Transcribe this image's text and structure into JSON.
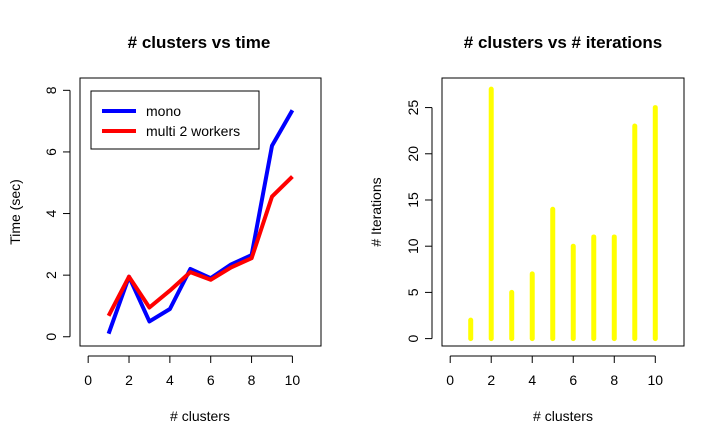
{
  "chart_data": [
    {
      "type": "line",
      "title": "# clusters vs time",
      "xlabel": "# clusters",
      "ylabel": "Time (sec)",
      "xlim": [
        -0.4,
        11.4
      ],
      "ylim": [
        -0.3,
        8.4
      ],
      "xticks": [
        "0",
        "2",
        "4",
        "6",
        "8",
        "10"
      ],
      "yticks": [
        "0",
        "2",
        "4",
        "6",
        "8"
      ],
      "x": [
        1,
        2,
        3,
        4,
        5,
        6,
        7,
        8,
        9,
        10
      ],
      "legend_position": "top-left",
      "series": [
        {
          "name": "mono",
          "color": "#0000ff",
          "values": [
            0.1,
            1.95,
            0.5,
            0.9,
            2.2,
            1.9,
            2.35,
            2.65,
            6.2,
            7.35
          ]
        },
        {
          "name": "multi 2 workers",
          "color": "#ff0000",
          "values": [
            0.68,
            1.95,
            0.95,
            1.5,
            2.1,
            1.85,
            2.25,
            2.55,
            4.55,
            5.2
          ]
        }
      ],
      "grid": false
    },
    {
      "type": "bar",
      "title": "# clusters vs # iterations",
      "xlabel": "# clusters",
      "ylabel": "# Iterations",
      "xlim": [
        -0.4,
        11.4
      ],
      "ylim": [
        -0.8,
        28.2
      ],
      "xticks": [
        "0",
        "2",
        "4",
        "6",
        "8",
        "10"
      ],
      "yticks": [
        "0",
        "5",
        "10",
        "15",
        "20",
        "25"
      ],
      "categories": [
        1,
        2,
        3,
        4,
        5,
        6,
        7,
        8,
        9,
        10
      ],
      "values": [
        2,
        27,
        5,
        7,
        14,
        10,
        11,
        11,
        23,
        25
      ],
      "color": "#ffff00",
      "grid": false
    }
  ]
}
